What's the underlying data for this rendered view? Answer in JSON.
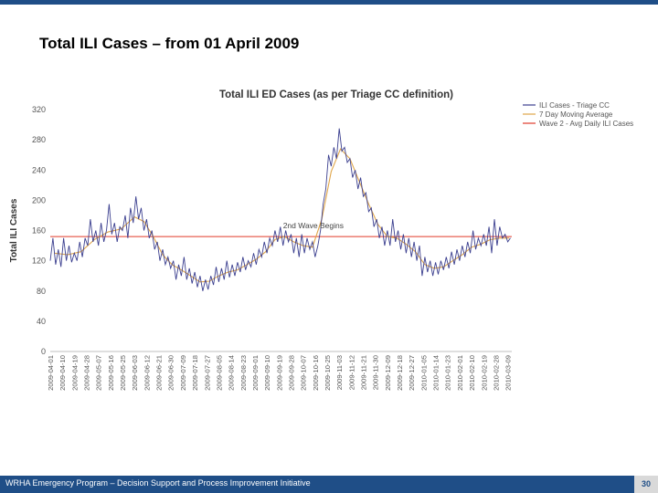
{
  "slide": {
    "title": "Total ILI Cases – from 01 April 2009",
    "footer": "WRHA Emergency Program – Decision Support and Process Improvement Initiative",
    "page_number": "30"
  },
  "colors": {
    "daily": "#3b3f8f",
    "moving_avg": "#e0a64a",
    "wave_avg": "#e03a2a",
    "top_bar": "#1f4e87"
  },
  "chart_data": {
    "type": "line",
    "title": "Total ILI ED Cases (as per Triage CC definition)",
    "ylabel": "Total ILI Cases",
    "xlabel": "",
    "ylim": [
      0,
      320
    ],
    "yticks": [
      0,
      40,
      80,
      120,
      160,
      200,
      240,
      280,
      320
    ],
    "grid": false,
    "legend_position": "right",
    "x_start": "2009-04-01",
    "x_end": "2010-03-12",
    "x_tick_labels": [
      "2009-04-01",
      "2009-04-10",
      "2009-04-19",
      "2009-04-28",
      "2009-05-07",
      "2009-05-16",
      "2009-05-25",
      "2009-06-03",
      "2009-06-12",
      "2009-06-21",
      "2009-06-30",
      "2009-07-09",
      "2009-07-18",
      "2009-07-27",
      "2009-08-05",
      "2009-08-14",
      "2009-08-23",
      "2009-09-01",
      "2009-09-10",
      "2009-09-19",
      "2009-09-28",
      "2009-10-07",
      "2009-10-16",
      "2009-10-25",
      "2009-11-03",
      "2009-11-12",
      "2009-11-21",
      "2009-11-30",
      "2009-12-09",
      "2009-12-18",
      "2009-12-27",
      "2010-01-05",
      "2010-01-14",
      "2010-01-23",
      "2010-02-01",
      "2010-02-10",
      "2010-02-19",
      "2010-02-28",
      "2010-03-09"
    ],
    "series": [
      {
        "name": "ILI Cases - Triage CC",
        "type": "line",
        "points": [
          [
            "2009-04-01",
            120
          ],
          [
            "2009-04-03",
            150
          ],
          [
            "2009-04-05",
            115
          ],
          [
            "2009-04-07",
            135
          ],
          [
            "2009-04-09",
            112
          ],
          [
            "2009-04-11",
            150
          ],
          [
            "2009-04-13",
            120
          ],
          [
            "2009-04-15",
            140
          ],
          [
            "2009-04-17",
            118
          ],
          [
            "2009-04-19",
            130
          ],
          [
            "2009-04-21",
            120
          ],
          [
            "2009-04-23",
            145
          ],
          [
            "2009-04-25",
            125
          ],
          [
            "2009-04-27",
            150
          ],
          [
            "2009-04-29",
            140
          ],
          [
            "2009-05-01",
            175
          ],
          [
            "2009-05-03",
            145
          ],
          [
            "2009-05-05",
            160
          ],
          [
            "2009-05-07",
            140
          ],
          [
            "2009-05-09",
            170
          ],
          [
            "2009-05-11",
            145
          ],
          [
            "2009-05-13",
            160
          ],
          [
            "2009-05-15",
            195
          ],
          [
            "2009-05-17",
            155
          ],
          [
            "2009-05-19",
            170
          ],
          [
            "2009-05-21",
            145
          ],
          [
            "2009-05-23",
            165
          ],
          [
            "2009-05-25",
            160
          ],
          [
            "2009-05-27",
            180
          ],
          [
            "2009-05-29",
            150
          ],
          [
            "2009-05-31",
            190
          ],
          [
            "2009-06-02",
            170
          ],
          [
            "2009-06-04",
            205
          ],
          [
            "2009-06-06",
            175
          ],
          [
            "2009-06-08",
            190
          ],
          [
            "2009-06-10",
            160
          ],
          [
            "2009-06-12",
            175
          ],
          [
            "2009-06-14",
            150
          ],
          [
            "2009-06-16",
            160
          ],
          [
            "2009-06-18",
            135
          ],
          [
            "2009-06-20",
            145
          ],
          [
            "2009-06-22",
            120
          ],
          [
            "2009-06-24",
            135
          ],
          [
            "2009-06-26",
            115
          ],
          [
            "2009-06-28",
            125
          ],
          [
            "2009-06-30",
            110
          ],
          [
            "2009-07-02",
            120
          ],
          [
            "2009-07-04",
            95
          ],
          [
            "2009-07-06",
            115
          ],
          [
            "2009-07-08",
            100
          ],
          [
            "2009-07-10",
            125
          ],
          [
            "2009-07-12",
            95
          ],
          [
            "2009-07-14",
            110
          ],
          [
            "2009-07-16",
            90
          ],
          [
            "2009-07-18",
            105
          ],
          [
            "2009-07-20",
            85
          ],
          [
            "2009-07-22",
            100
          ],
          [
            "2009-07-24",
            80
          ],
          [
            "2009-07-26",
            95
          ],
          [
            "2009-07-28",
            82
          ],
          [
            "2009-07-30",
            100
          ],
          [
            "2009-08-01",
            88
          ],
          [
            "2009-08-03",
            112
          ],
          [
            "2009-08-05",
            92
          ],
          [
            "2009-08-07",
            110
          ],
          [
            "2009-08-09",
            95
          ],
          [
            "2009-08-11",
            120
          ],
          [
            "2009-08-13",
            98
          ],
          [
            "2009-08-15",
            115
          ],
          [
            "2009-08-17",
            100
          ],
          [
            "2009-08-19",
            118
          ],
          [
            "2009-08-21",
            105
          ],
          [
            "2009-08-23",
            125
          ],
          [
            "2009-08-25",
            108
          ],
          [
            "2009-08-27",
            120
          ],
          [
            "2009-08-29",
            112
          ],
          [
            "2009-08-31",
            130
          ],
          [
            "2009-09-02",
            115
          ],
          [
            "2009-09-04",
            135
          ],
          [
            "2009-09-06",
            125
          ],
          [
            "2009-09-08",
            145
          ],
          [
            "2009-09-10",
            130
          ],
          [
            "2009-09-12",
            150
          ],
          [
            "2009-09-14",
            140
          ],
          [
            "2009-09-16",
            160
          ],
          [
            "2009-09-18",
            145
          ],
          [
            "2009-09-20",
            165
          ],
          [
            "2009-09-22",
            140
          ],
          [
            "2009-09-24",
            160
          ],
          [
            "2009-09-26",
            145
          ],
          [
            "2009-09-28",
            155
          ],
          [
            "2009-09-30",
            130
          ],
          [
            "2009-10-02",
            150
          ],
          [
            "2009-10-04",
            125
          ],
          [
            "2009-10-06",
            155
          ],
          [
            "2009-10-08",
            130
          ],
          [
            "2009-10-10",
            150
          ],
          [
            "2009-10-12",
            135
          ],
          [
            "2009-10-14",
            145
          ],
          [
            "2009-10-16",
            125
          ],
          [
            "2009-10-18",
            140
          ],
          [
            "2009-10-20",
            160
          ],
          [
            "2009-10-22",
            195
          ],
          [
            "2009-10-24",
            215
          ],
          [
            "2009-10-26",
            260
          ],
          [
            "2009-10-28",
            245
          ],
          [
            "2009-10-30",
            270
          ],
          [
            "2009-11-01",
            255
          ],
          [
            "2009-11-03",
            295
          ],
          [
            "2009-11-05",
            265
          ],
          [
            "2009-11-07",
            270
          ],
          [
            "2009-11-09",
            250
          ],
          [
            "2009-11-11",
            255
          ],
          [
            "2009-11-13",
            230
          ],
          [
            "2009-11-15",
            240
          ],
          [
            "2009-11-17",
            215
          ],
          [
            "2009-11-19",
            230
          ],
          [
            "2009-11-21",
            205
          ],
          [
            "2009-11-23",
            210
          ],
          [
            "2009-11-25",
            185
          ],
          [
            "2009-11-27",
            190
          ],
          [
            "2009-11-29",
            165
          ],
          [
            "2009-12-01",
            175
          ],
          [
            "2009-12-03",
            150
          ],
          [
            "2009-12-05",
            165
          ],
          [
            "2009-12-07",
            140
          ],
          [
            "2009-12-09",
            160
          ],
          [
            "2009-12-11",
            140
          ],
          [
            "2009-12-13",
            175
          ],
          [
            "2009-12-15",
            145
          ],
          [
            "2009-12-17",
            160
          ],
          [
            "2009-12-19",
            135
          ],
          [
            "2009-12-21",
            155
          ],
          [
            "2009-12-23",
            130
          ],
          [
            "2009-12-25",
            150
          ],
          [
            "2009-12-27",
            125
          ],
          [
            "2009-12-29",
            145
          ],
          [
            "2009-12-31",
            120
          ],
          [
            "2010-01-02",
            140
          ],
          [
            "2010-01-04",
            100
          ],
          [
            "2010-01-06",
            125
          ],
          [
            "2010-01-08",
            105
          ],
          [
            "2010-01-10",
            120
          ],
          [
            "2010-01-12",
            100
          ],
          [
            "2010-01-14",
            118
          ],
          [
            "2010-01-16",
            102
          ],
          [
            "2010-01-18",
            120
          ],
          [
            "2010-01-20",
            108
          ],
          [
            "2010-01-22",
            125
          ],
          [
            "2010-01-24",
            110
          ],
          [
            "2010-01-26",
            132
          ],
          [
            "2010-01-28",
            115
          ],
          [
            "2010-01-30",
            135
          ],
          [
            "2010-02-01",
            120
          ],
          [
            "2010-02-03",
            140
          ],
          [
            "2010-02-05",
            125
          ],
          [
            "2010-02-07",
            145
          ],
          [
            "2010-02-09",
            130
          ],
          [
            "2010-02-11",
            160
          ],
          [
            "2010-02-13",
            135
          ],
          [
            "2010-02-15",
            150
          ],
          [
            "2010-02-17",
            140
          ],
          [
            "2010-02-19",
            155
          ],
          [
            "2010-02-21",
            140
          ],
          [
            "2010-02-23",
            165
          ],
          [
            "2010-02-25",
            130
          ],
          [
            "2010-02-27",
            175
          ],
          [
            "2010-03-01",
            140
          ],
          [
            "2010-03-03",
            165
          ],
          [
            "2010-03-05",
            150
          ],
          [
            "2010-03-07",
            155
          ],
          [
            "2010-03-09",
            145
          ],
          [
            "2010-03-11",
            150
          ]
        ]
      },
      {
        "name": "7 Day Moving Average",
        "type": "line",
        "points": [
          [
            "2009-04-04",
            130
          ],
          [
            "2009-04-14",
            128
          ],
          [
            "2009-04-24",
            132
          ],
          [
            "2009-05-04",
            148
          ],
          [
            "2009-05-14",
            158
          ],
          [
            "2009-05-24",
            162
          ],
          [
            "2009-06-03",
            178
          ],
          [
            "2009-06-10",
            172
          ],
          [
            "2009-06-17",
            152
          ],
          [
            "2009-06-24",
            128
          ],
          [
            "2009-07-01",
            115
          ],
          [
            "2009-07-08",
            108
          ],
          [
            "2009-07-15",
            100
          ],
          [
            "2009-07-22",
            92
          ],
          [
            "2009-07-29",
            93
          ],
          [
            "2009-08-05",
            100
          ],
          [
            "2009-08-12",
            105
          ],
          [
            "2009-08-19",
            108
          ],
          [
            "2009-08-26",
            115
          ],
          [
            "2009-09-02",
            122
          ],
          [
            "2009-09-09",
            132
          ],
          [
            "2009-09-16",
            148
          ],
          [
            "2009-09-23",
            152
          ],
          [
            "2009-09-30",
            145
          ],
          [
            "2009-10-07",
            140
          ],
          [
            "2009-10-14",
            138
          ],
          [
            "2009-10-21",
            175
          ],
          [
            "2009-10-28",
            238
          ],
          [
            "2009-11-04",
            268
          ],
          [
            "2009-11-11",
            255
          ],
          [
            "2009-11-18",
            225
          ],
          [
            "2009-11-25",
            195
          ],
          [
            "2009-12-02",
            168
          ],
          [
            "2009-12-09",
            152
          ],
          [
            "2009-12-16",
            150
          ],
          [
            "2009-12-23",
            142
          ],
          [
            "2009-12-30",
            132
          ],
          [
            "2010-01-06",
            115
          ],
          [
            "2010-01-13",
            110
          ],
          [
            "2010-01-20",
            112
          ],
          [
            "2010-01-27",
            120
          ],
          [
            "2010-02-03",
            128
          ],
          [
            "2010-02-10",
            138
          ],
          [
            "2010-02-17",
            142
          ],
          [
            "2010-02-24",
            148
          ],
          [
            "2010-03-03",
            150
          ],
          [
            "2010-03-10",
            150
          ]
        ]
      },
      {
        "name": "Wave 2 - Avg Daily ILI Cases",
        "type": "hline",
        "value": 152
      }
    ],
    "annotations": [
      {
        "text": "2nd Wave Begins",
        "x": "2009-09-22",
        "y": 163
      }
    ]
  }
}
